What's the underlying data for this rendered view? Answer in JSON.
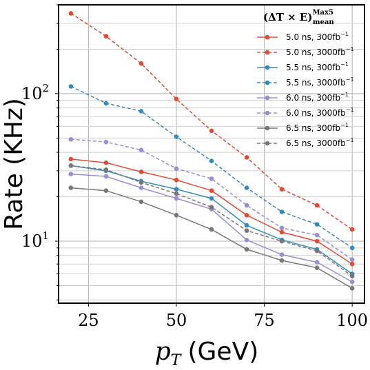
{
  "chart_data": {
    "type": "line",
    "title": "",
    "xlabel": "p_T (GeV)",
    "xlabel_parts": {
      "var": "p",
      "sub": "T",
      "unit": "(GeV)"
    },
    "ylabel": "Rate (KHz)",
    "xlim": [
      16.5,
      103.5
    ],
    "ylim": [
      3.8,
      400
    ],
    "yscale": "log",
    "grid": true,
    "legend_position": "top-right",
    "legend_title": "(ΔT × E)",
    "legend_title_sup": "Max5",
    "legend_title_sub": "mean",
    "x_ticks": [
      "25",
      "50",
      "75",
      "100"
    ],
    "y_ticks": [
      "10",
      "10"
    ],
    "y_ticks_sup": [
      "1",
      "2"
    ],
    "x": [
      20,
      30,
      40,
      50,
      60,
      70,
      80,
      90,
      100
    ],
    "series": [
      {
        "name": "5.0 ns, 300fb",
        "sup": "−1",
        "color": "#E24A33",
        "dashed": false,
        "values": [
          36,
          34,
          29.5,
          26,
          22,
          15,
          11.5,
          10,
          7
        ]
      },
      {
        "name": "5.0 ns, 3000fb",
        "sup": "−1",
        "color": "#E24A33",
        "dashed": true,
        "values": [
          350,
          245,
          160,
          92,
          56,
          37,
          22.5,
          17.5,
          12
        ]
      },
      {
        "name": "5.5 ns, 300fb",
        "sup": "−1",
        "color": "#348ABD",
        "dashed": false,
        "values": [
          32.5,
          30,
          25.5,
          22.5,
          19.5,
          12.8,
          10.2,
          8.8,
          6
        ]
      },
      {
        "name": "5.5 ns, 3000fb",
        "sup": "−1",
        "color": "#348ABD",
        "dashed": true,
        "values": [
          112,
          86,
          76,
          51,
          35,
          23,
          15.8,
          13,
          9
        ]
      },
      {
        "name": "6.0 ns, 300fb",
        "sup": "−1",
        "color": "#988ED5",
        "dashed": false,
        "values": [
          28.5,
          27.5,
          23,
          19.5,
          16.5,
          10.2,
          8.1,
          7.2,
          5.3
        ]
      },
      {
        "name": "6.0 ns, 3000fb",
        "sup": "−1",
        "color": "#988ED5",
        "dashed": true,
        "values": [
          49,
          47,
          41.5,
          31,
          26.5,
          17.5,
          12.3,
          11,
          7.5
        ]
      },
      {
        "name": "6.5 ns, 300fb",
        "sup": "−1",
        "color": "#777777",
        "dashed": false,
        "values": [
          23,
          22,
          18.5,
          15,
          12,
          8.8,
          7.4,
          6.6,
          4.8
        ]
      },
      {
        "name": "6.5 ns, 3000fb",
        "sup": "−1",
        "color": "#777777",
        "dashed": true,
        "values": [
          32.5,
          30.5,
          25,
          21,
          17,
          11.8,
          10,
          8.6,
          5.8
        ]
      }
    ]
  }
}
